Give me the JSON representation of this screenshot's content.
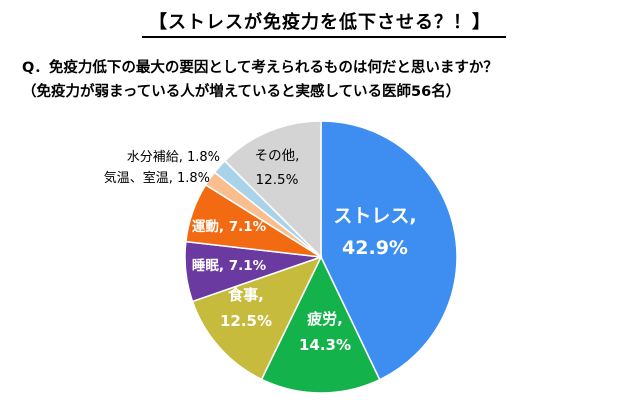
{
  "title": "【ストレスが免疫力を低下させる？！】",
  "question": "Q．免疫力低下の最大の要因として考えられるものは何だと思いますか？",
  "subquestion": "（免疫力が弱まっている人が増えていると実感している医師56名）",
  "chart_data": {
    "type": "pie",
    "start": "12 o'clock",
    "direction": "clockwise",
    "slices": [
      {
        "label": "ストレス",
        "value": 42.9,
        "text": "42.9%",
        "color": "#3D8EF0"
      },
      {
        "label": "疲労",
        "value": 14.3,
        "text": "14.3%",
        "color": "#14B24A"
      },
      {
        "label": "食事",
        "value": 12.5,
        "text": "12.5%",
        "color": "#C6BB3C"
      },
      {
        "label": "睡眠",
        "value": 7.1,
        "text": "7.1%",
        "color": "#6B3AA1"
      },
      {
        "label": "運動",
        "value": 7.1,
        "text": "7.1%",
        "color": "#F26B13"
      },
      {
        "label": "気温、室温",
        "value": 1.8,
        "text": "1.8%",
        "color": "#F8BE8E"
      },
      {
        "label": "水分補給",
        "value": 1.8,
        "text": "1.8%",
        "color": "#A8D3E8"
      },
      {
        "label": "その他",
        "value": 12.5,
        "text": "12.5%",
        "color": "#D4D4D4"
      }
    ]
  }
}
